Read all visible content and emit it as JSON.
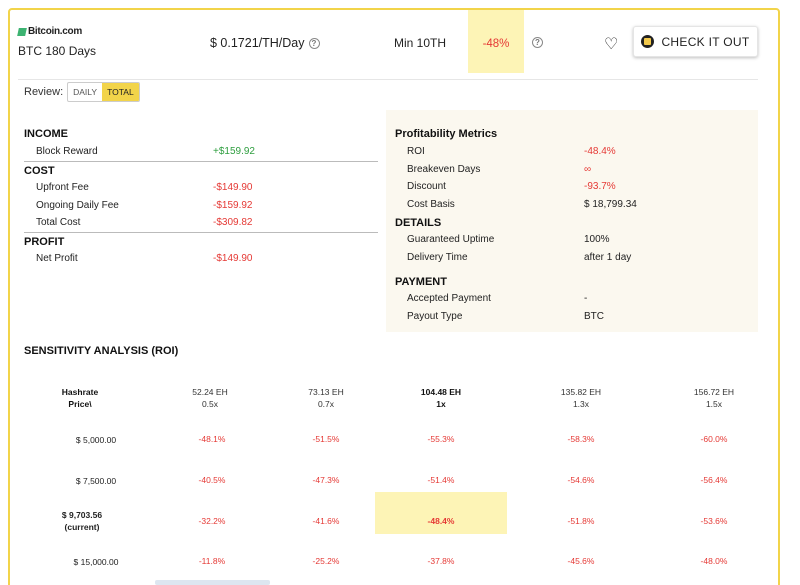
{
  "offer": {
    "brand": "Bitcoin.com",
    "plan": "BTC 180 Days",
    "price": "$ 0.1721/TH/Day",
    "min": "Min 10TH",
    "discount": "-48%",
    "cta": "CHECK IT OUT"
  },
  "review": {
    "label": "Review:",
    "options": [
      "DAILY",
      "TOTAL"
    ],
    "selected": "TOTAL"
  },
  "income": {
    "title": "INCOME",
    "rows": [
      {
        "label": "Block Reward",
        "value": "+$159.92"
      }
    ]
  },
  "cost": {
    "title": "COST",
    "rows": [
      {
        "label": "Upfront Fee",
        "value": "-$149.90"
      },
      {
        "label": "Ongoing Daily Fee",
        "value": "-$159.92"
      },
      {
        "label": "Total Cost",
        "value": "-$309.82"
      }
    ]
  },
  "profit": {
    "title": "PROFIT",
    "rows": [
      {
        "label": "Net Profit",
        "value": "-$149.90"
      }
    ]
  },
  "metrics": {
    "title": "Profitability Metrics",
    "rows": [
      {
        "label": "ROI",
        "value": "-48.4%"
      },
      {
        "label": "Breakeven Days",
        "value": "∞"
      },
      {
        "label": "Discount",
        "value": "-93.7%"
      },
      {
        "label": "Cost Basis",
        "value": "$ 18,799.34"
      }
    ]
  },
  "details": {
    "title": "DETAILS",
    "rows": [
      {
        "label": "Guaranteed Uptime",
        "value": "100%"
      },
      {
        "label": "Delivery Time",
        "value": "after 1 day"
      }
    ]
  },
  "payment": {
    "title": "PAYMENT",
    "rows": [
      {
        "label": "Accepted Payment",
        "value": "-"
      },
      {
        "label": "Payout Type",
        "value": "BTC"
      }
    ]
  },
  "sensitivity": {
    "title": "SENSITIVITY ANALYSIS (ROI)",
    "corner_line1": "Hashrate",
    "corner_line2": "Price\\",
    "columns": [
      {
        "hashrate": "52.24 EH",
        "mult": "0.5x"
      },
      {
        "hashrate": "73.13 EH",
        "mult": "0.7x"
      },
      {
        "hashrate": "104.48 EH",
        "mult": "1x"
      },
      {
        "hashrate": "135.82 EH",
        "mult": "1.3x"
      },
      {
        "hashrate": "156.72 EH",
        "mult": "1.5x"
      }
    ],
    "rows": [
      {
        "price": "$ 5,000.00",
        "note": "",
        "values": [
          "-48.1%",
          "-51.5%",
          "-55.3%",
          "-58.3%",
          "-60.0%"
        ]
      },
      {
        "price": "$ 7,500.00",
        "note": "",
        "values": [
          "-40.5%",
          "-47.3%",
          "-51.4%",
          "-54.6%",
          "-56.4%"
        ]
      },
      {
        "price": "$ 9,703.56",
        "note": "(current)",
        "values": [
          "-32.2%",
          "-41.6%",
          "-48.4%",
          "-51.8%",
          "-53.6%"
        ]
      },
      {
        "price": "$ 15,000.00",
        "note": "",
        "values": [
          "-11.8%",
          "-25.2%",
          "-37.8%",
          "-45.6%",
          "-48.0%"
        ]
      }
    ]
  }
}
